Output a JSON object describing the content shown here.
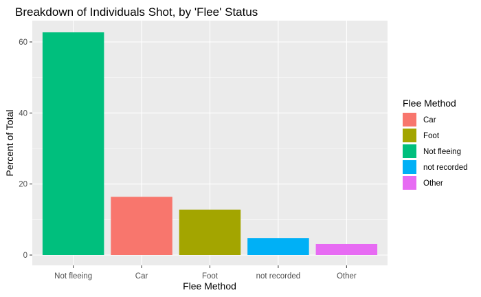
{
  "chart_data": {
    "type": "bar",
    "title": "Breakdown of Individuals Shot, by 'Flee' Status",
    "xlabel": "Flee Method",
    "ylabel": "Percent of Total",
    "categories": [
      "Not fleeing",
      "Car",
      "Foot",
      "not recorded",
      "Other"
    ],
    "values": [
      62.7,
      16.4,
      12.8,
      4.8,
      3.1
    ],
    "bar_colors": [
      "#00BF7D",
      "#F8766D",
      "#A3A500",
      "#00B0F6",
      "#E76BF3"
    ],
    "ylim": [
      0,
      66
    ],
    "yticks": [
      0,
      20,
      40,
      60
    ],
    "grid": true,
    "panel_background": "#EBEBEB",
    "legend": {
      "title": "Flee Method",
      "position": "right",
      "items": [
        {
          "label": "Car",
          "color": "#F8766D"
        },
        {
          "label": "Foot",
          "color": "#A3A500"
        },
        {
          "label": "Not fleeing",
          "color": "#00BF7D"
        },
        {
          "label": "not recorded",
          "color": "#00B0F6"
        },
        {
          "label": "Other",
          "color": "#E76BF3"
        }
      ]
    }
  }
}
